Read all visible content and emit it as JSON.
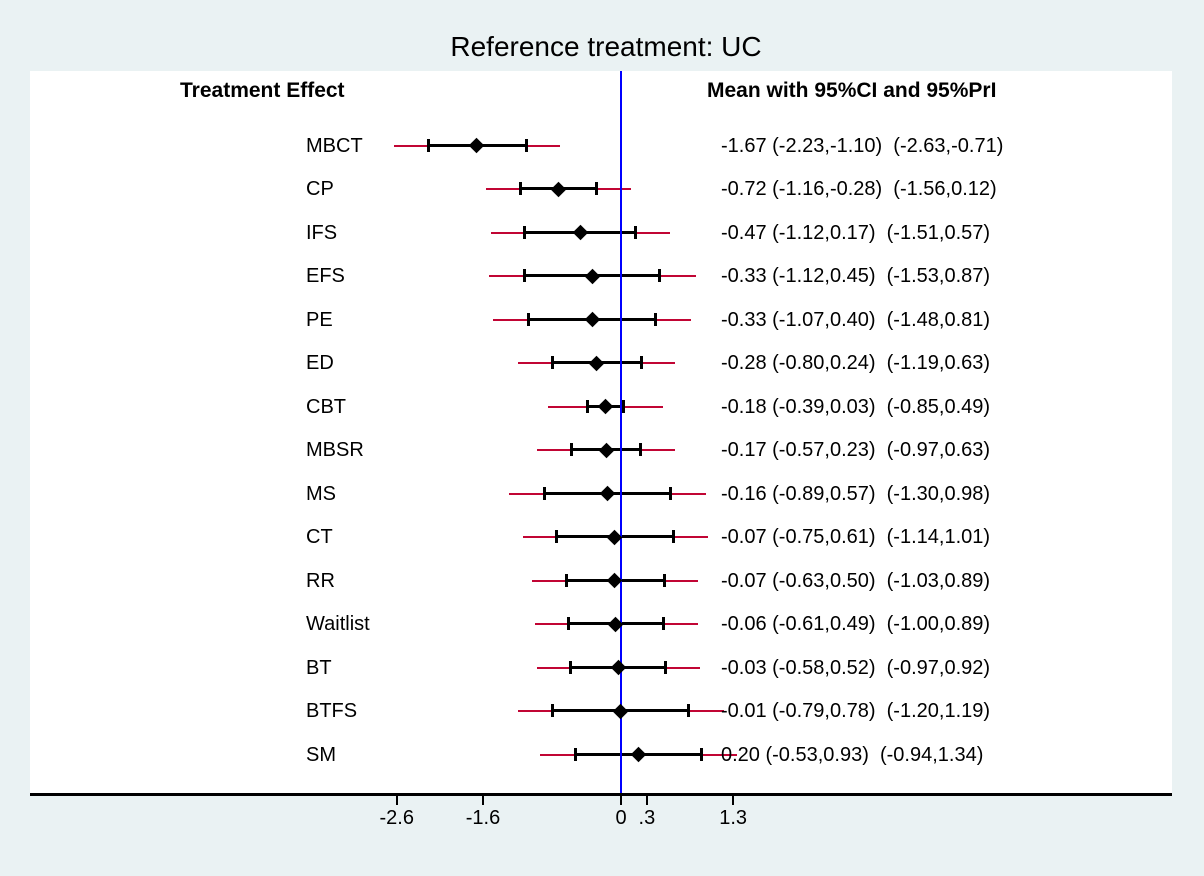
{
  "title": "Reference treatment: UC",
  "columns": {
    "left_header": "Treatment Effect",
    "right_header": "Mean with 95%CI and 95%PrI"
  },
  "colors": {
    "canvas_bg": "#eaf2f3",
    "plot_bg": "#ffffff",
    "prediction_interval": "#c10534",
    "confidence_interval": "#000000",
    "mean_marker": "#000000",
    "reference_line": "#0000ff",
    "axis_line": "#000000",
    "text": "#000000"
  },
  "axis": {
    "reference_value": 0,
    "ticks": [
      {
        "value": -2.6,
        "label": "-2.6"
      },
      {
        "value": -1.6,
        "label": "-1.6"
      },
      {
        "value": 0,
        "label": "0"
      },
      {
        "value": 0.3,
        "label": ".3"
      },
      {
        "value": 1.3,
        "label": "1.3"
      }
    ]
  },
  "chart_data": {
    "type": "forest",
    "title": "Reference treatment: UC",
    "xlabel": "",
    "x_ticks": [
      -2.6,
      -1.6,
      0,
      0.3,
      1.3
    ],
    "x_range": [
      -3.3,
      2.3
    ],
    "reference_line": 0,
    "legend": "black line = 95%CI with caps, crimson line = 95%PrI, diamond = mean",
    "rows": [
      {
        "treatment": "MBCT",
        "mean": -1.67,
        "ci_low": -2.23,
        "ci_high": -1.1,
        "pri_low": -2.63,
        "pri_high": -0.71,
        "text": "-1.67 (-2.23,-1.10)  (-2.63,-0.71)"
      },
      {
        "treatment": "CP",
        "mean": -0.72,
        "ci_low": -1.16,
        "ci_high": -0.28,
        "pri_low": -1.56,
        "pri_high": 0.12,
        "text": "-0.72 (-1.16,-0.28)  (-1.56,0.12)"
      },
      {
        "treatment": "IFS",
        "mean": -0.47,
        "ci_low": -1.12,
        "ci_high": 0.17,
        "pri_low": -1.51,
        "pri_high": 0.57,
        "text": "-0.47 (-1.12,0.17)  (-1.51,0.57)"
      },
      {
        "treatment": "EFS",
        "mean": -0.33,
        "ci_low": -1.12,
        "ci_high": 0.45,
        "pri_low": -1.53,
        "pri_high": 0.87,
        "text": "-0.33 (-1.12,0.45)  (-1.53,0.87)"
      },
      {
        "treatment": "PE",
        "mean": -0.33,
        "ci_low": -1.07,
        "ci_high": 0.4,
        "pri_low": -1.48,
        "pri_high": 0.81,
        "text": "-0.33 (-1.07,0.40)  (-1.48,0.81)"
      },
      {
        "treatment": "ED",
        "mean": -0.28,
        "ci_low": -0.8,
        "ci_high": 0.24,
        "pri_low": -1.19,
        "pri_high": 0.63,
        "text": "-0.28 (-0.80,0.24)  (-1.19,0.63)"
      },
      {
        "treatment": "CBT",
        "mean": -0.18,
        "ci_low": -0.39,
        "ci_high": 0.03,
        "pri_low": -0.85,
        "pri_high": 0.49,
        "text": "-0.18 (-0.39,0.03)  (-0.85,0.49)"
      },
      {
        "treatment": "MBSR",
        "mean": -0.17,
        "ci_low": -0.57,
        "ci_high": 0.23,
        "pri_low": -0.97,
        "pri_high": 0.63,
        "text": "-0.17 (-0.57,0.23)  (-0.97,0.63)"
      },
      {
        "treatment": "MS",
        "mean": -0.16,
        "ci_low": -0.89,
        "ci_high": 0.57,
        "pri_low": -1.3,
        "pri_high": 0.98,
        "text": "-0.16 (-0.89,0.57)  (-1.30,0.98)"
      },
      {
        "treatment": "CT",
        "mean": -0.07,
        "ci_low": -0.75,
        "ci_high": 0.61,
        "pri_low": -1.14,
        "pri_high": 1.01,
        "text": "-0.07 (-0.75,0.61)  (-1.14,1.01)"
      },
      {
        "treatment": "RR",
        "mean": -0.07,
        "ci_low": -0.63,
        "ci_high": 0.5,
        "pri_low": -1.03,
        "pri_high": 0.89,
        "text": "-0.07 (-0.63,0.50)  (-1.03,0.89)"
      },
      {
        "treatment": "Waitlist",
        "mean": -0.06,
        "ci_low": -0.61,
        "ci_high": 0.49,
        "pri_low": -1.0,
        "pri_high": 0.89,
        "text": "-0.06 (-0.61,0.49)  (-1.00,0.89)"
      },
      {
        "treatment": "BT",
        "mean": -0.03,
        "ci_low": -0.58,
        "ci_high": 0.52,
        "pri_low": -0.97,
        "pri_high": 0.92,
        "text": "-0.03 (-0.58,0.52)  (-0.97,0.92)"
      },
      {
        "treatment": "BTFS",
        "mean": -0.01,
        "ci_low": -0.79,
        "ci_high": 0.78,
        "pri_low": -1.2,
        "pri_high": 1.19,
        "text": "-0.01 (-0.79,0.78)  (-1.20,1.19)"
      },
      {
        "treatment": "SM",
        "mean": 0.2,
        "ci_low": -0.53,
        "ci_high": 0.93,
        "pri_low": -0.94,
        "pri_high": 1.34,
        "text": "0.20 (-0.53,0.93)  (-0.94,1.34)"
      }
    ]
  }
}
